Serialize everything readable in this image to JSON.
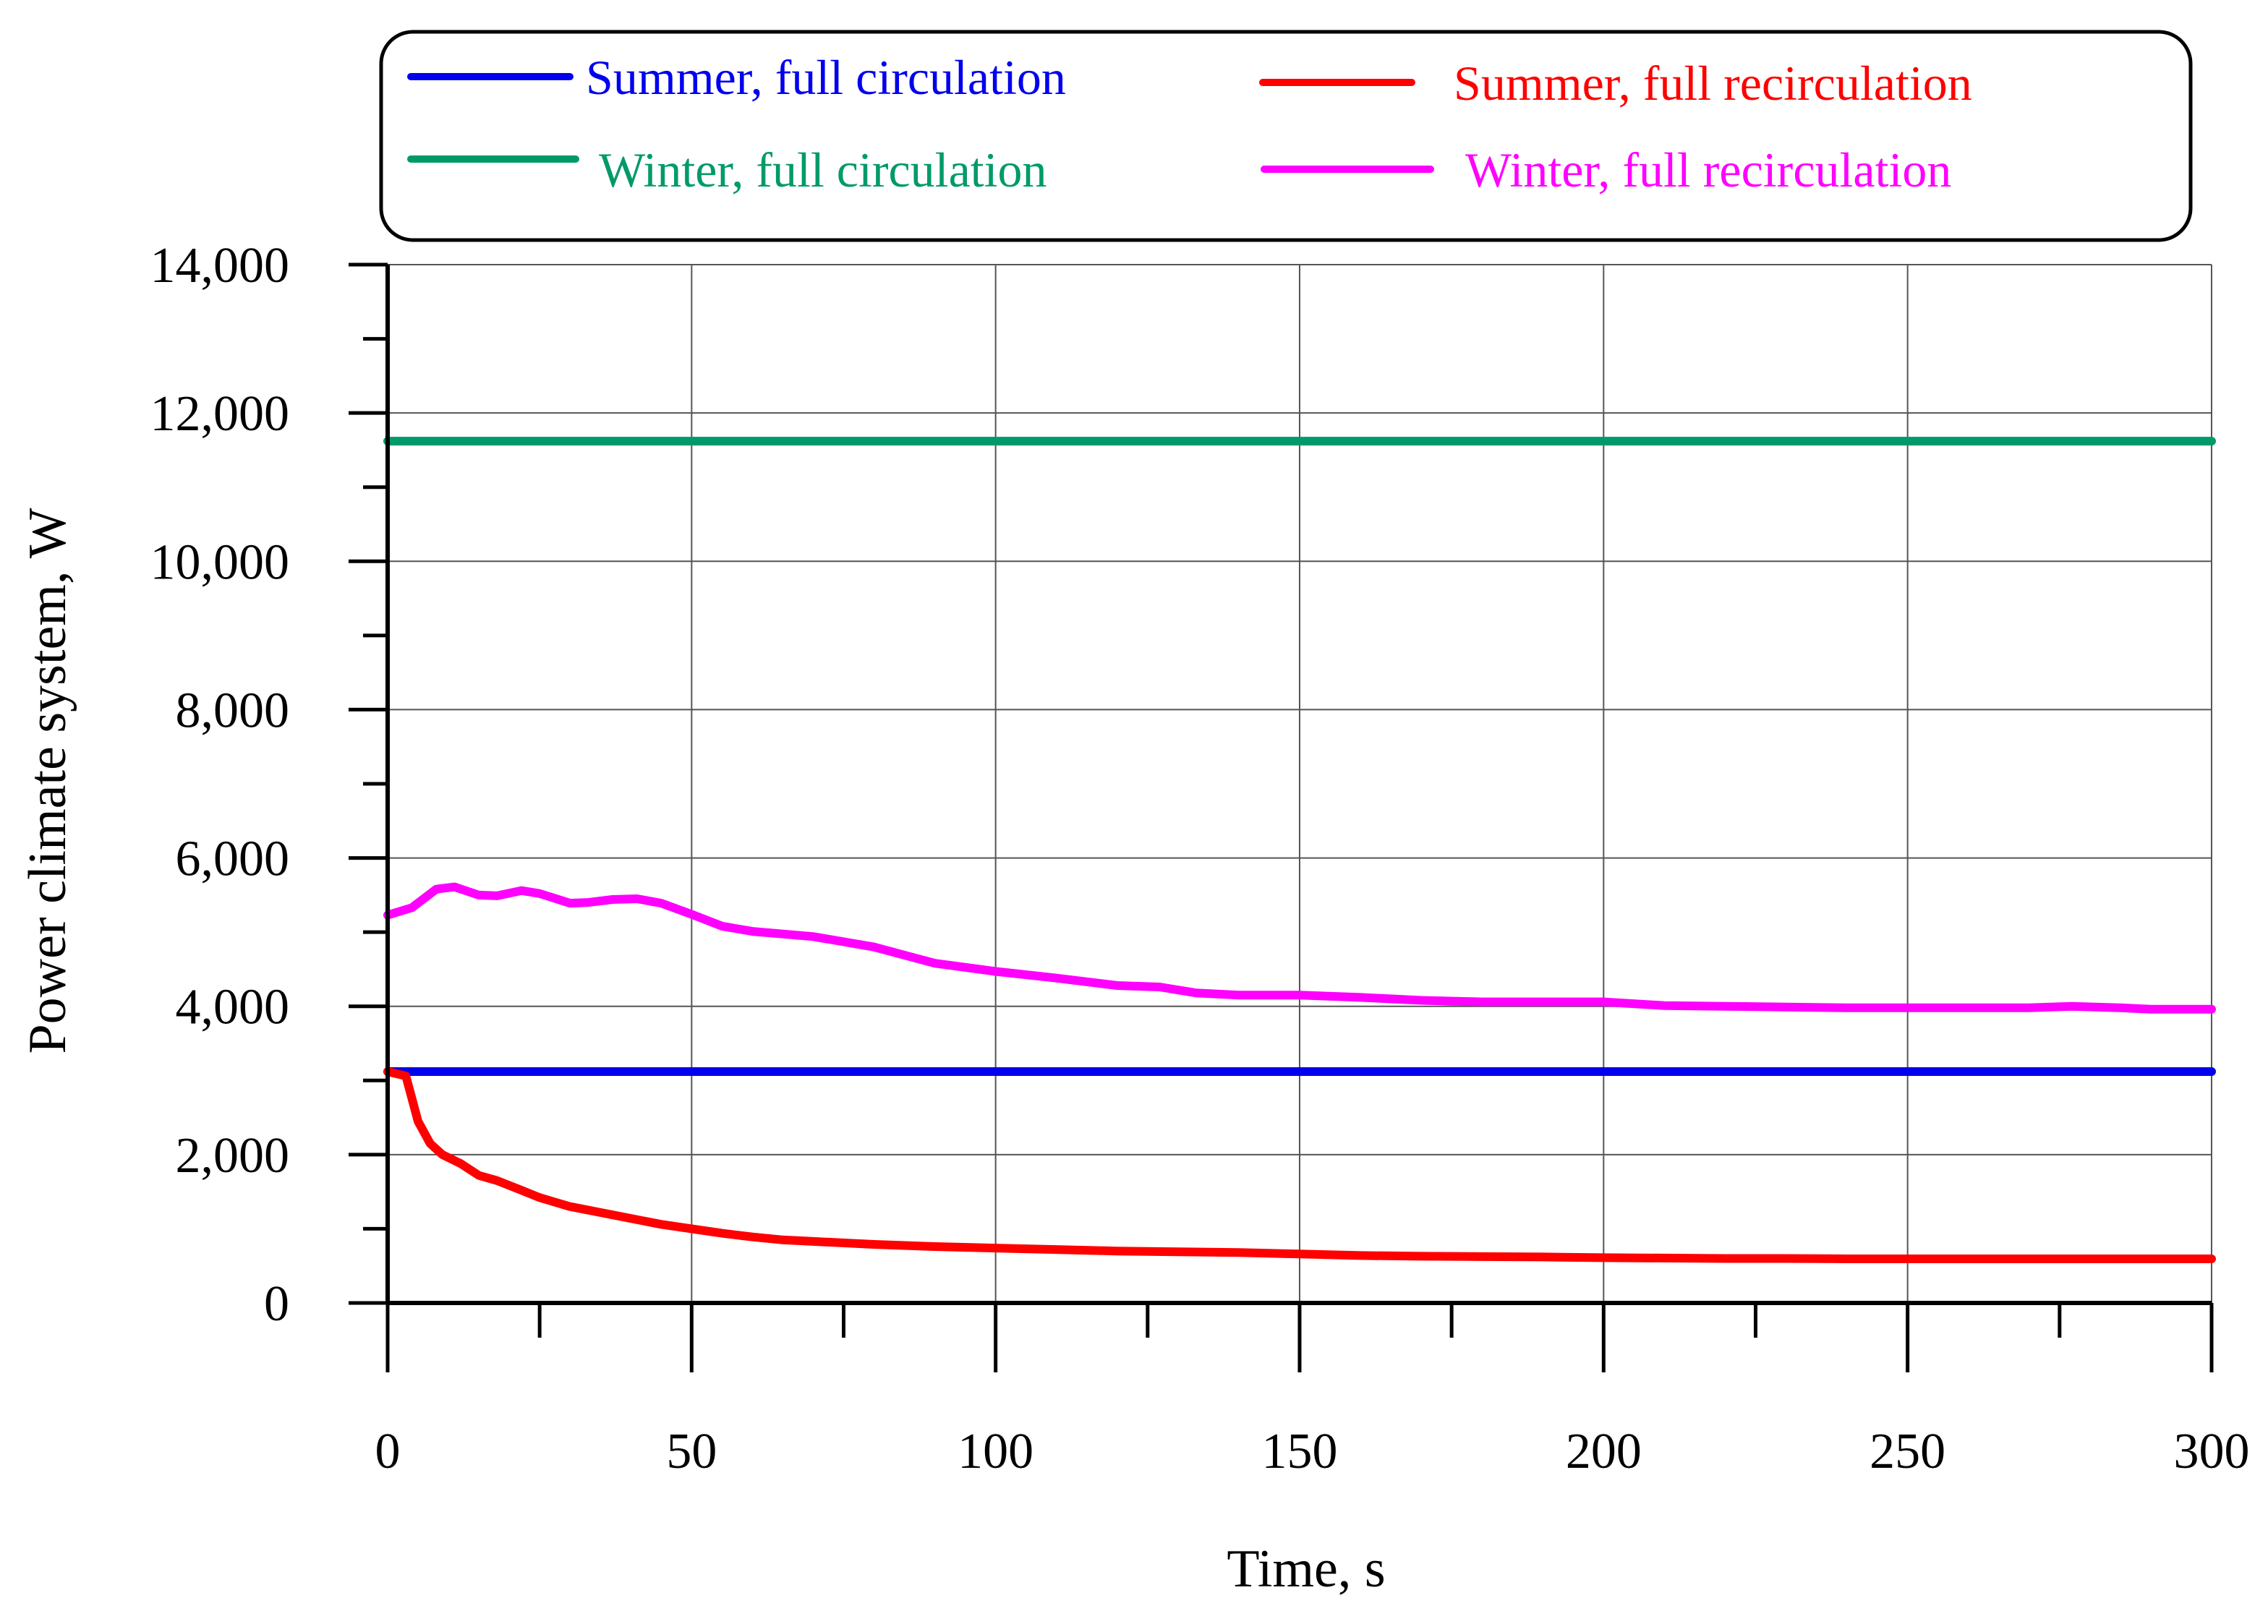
{
  "chart_data": {
    "type": "line",
    "title": "",
    "xlabel": "Time, s",
    "ylabel": "Power climate system, W",
    "xlim": [
      0,
      300
    ],
    "ylim": [
      0,
      14000
    ],
    "grid": true,
    "legend_position": "top",
    "x_tick_values": [
      0,
      50,
      100,
      150,
      200,
      250,
      300
    ],
    "x_tick_labels": [
      "0",
      "50",
      "100",
      "150",
      "200",
      "250",
      "300"
    ],
    "y_tick_values": [
      0,
      2000,
      4000,
      6000,
      8000,
      10000,
      12000,
      14000
    ],
    "y_tick_labels": [
      "0",
      "2,000",
      "4,000",
      "6,000",
      "8,000",
      "10,000",
      "12,000",
      "14,000"
    ],
    "series": [
      {
        "name": "Summer, full circulation",
        "color": "#0000ee",
        "x": [
          0,
          300
        ],
        "y": [
          3120,
          3120
        ]
      },
      {
        "name": "Summer, full recirculation",
        "color": "#ff0000",
        "x": [
          0,
          3,
          5,
          7,
          9,
          12,
          15,
          18,
          22,
          25,
          30,
          35,
          40,
          45,
          50,
          55,
          60,
          65,
          70,
          80,
          90,
          100,
          110,
          120,
          130,
          140,
          150,
          160,
          170,
          180,
          190,
          200,
          210,
          220,
          230,
          240,
          250,
          260,
          270,
          280,
          290,
          300
        ],
        "y": [
          3120,
          3060,
          2450,
          2150,
          2000,
          1880,
          1720,
          1650,
          1520,
          1420,
          1300,
          1220,
          1140,
          1060,
          1000,
          940,
          890,
          850,
          830,
          790,
          760,
          740,
          720,
          700,
          690,
          680,
          660,
          640,
          630,
          625,
          620,
          610,
          605,
          600,
          600,
          595,
          595,
          595,
          595,
          595,
          595,
          595
        ]
      },
      {
        "name": "Winter, full circulation",
        "color": "#009a6a",
        "x": [
          0,
          300
        ],
        "y": [
          11620,
          11620
        ]
      },
      {
        "name": "Winter, full recirculation",
        "color": "#ff00ff",
        "x": [
          0,
          4,
          8,
          11,
          15,
          18,
          22,
          25,
          30,
          33,
          37,
          41,
          45,
          50,
          55,
          60,
          70,
          80,
          90,
          100,
          110,
          120,
          127,
          133,
          140,
          150,
          160,
          170,
          180,
          190,
          200,
          210,
          220,
          230,
          240,
          250,
          260,
          270,
          277,
          285,
          290,
          300
        ],
        "y": [
          5230,
          5330,
          5580,
          5610,
          5500,
          5490,
          5560,
          5520,
          5390,
          5400,
          5440,
          5450,
          5390,
          5240,
          5080,
          5010,
          4940,
          4800,
          4580,
          4470,
          4380,
          4280,
          4260,
          4180,
          4150,
          4150,
          4120,
          4080,
          4060,
          4060,
          4060,
          4010,
          4000,
          3990,
          3980,
          3980,
          3980,
          3980,
          4000,
          3980,
          3960,
          3960
        ]
      }
    ]
  }
}
